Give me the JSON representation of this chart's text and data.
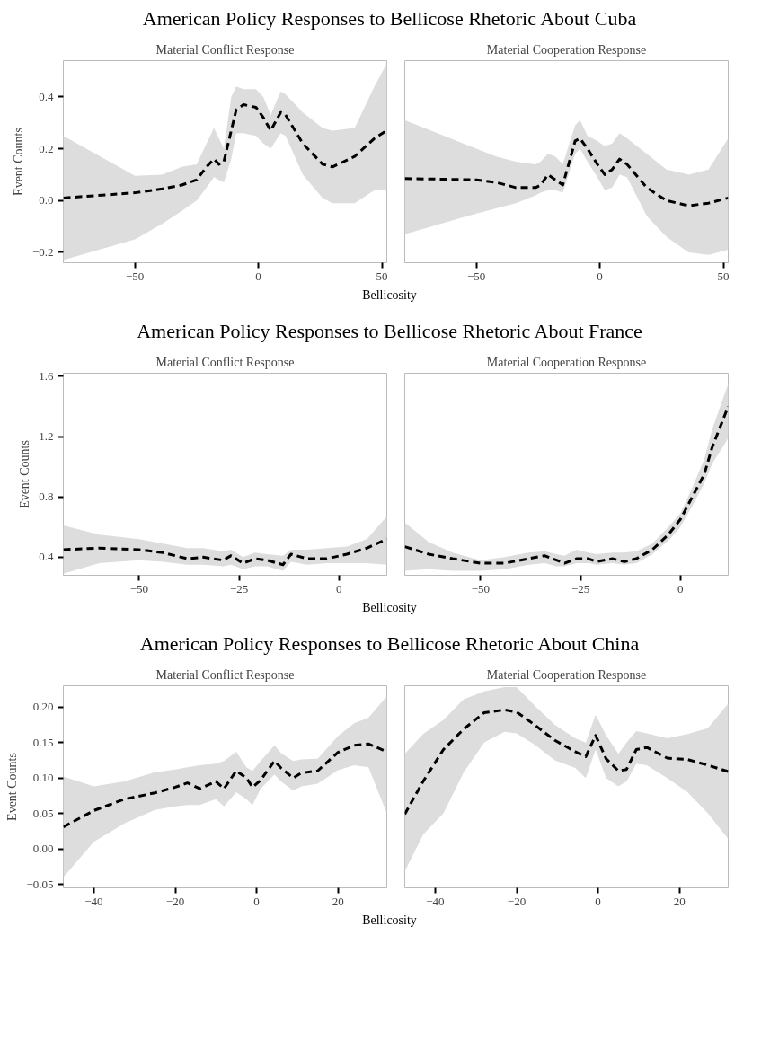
{
  "chart_data": [
    {
      "type": "line",
      "title": "American Policy Responses to Bellicose Rhetoric About Cuba",
      "subtitle": "Material Conflict Response",
      "xlabel": "Bellicosity",
      "ylabel": "Event Counts",
      "line_style": "dashed",
      "grid": false,
      "xlim": [
        -79,
        52
      ],
      "ylim": [
        -0.24,
        0.54
      ],
      "xticks": [
        {
          "value": -50,
          "label": "−50"
        },
        0,
        50
      ],
      "yticks": [
        {
          "value": -0.2,
          "label": "−0.2"
        },
        {
          "value": 0,
          "label": "0.0"
        },
        0.2,
        0.4
      ],
      "x": [
        -79,
        -50,
        -39,
        -31,
        -25,
        -21,
        -18,
        -16,
        -14,
        -11,
        -9,
        -6,
        -1,
        2,
        5,
        9,
        11,
        18,
        26,
        30,
        39,
        47,
        52
      ],
      "series": [
        {
          "color": "#000000",
          "values": [
            0.01,
            0.03,
            0.045,
            0.06,
            0.08,
            0.13,
            0.16,
            0.14,
            0.15,
            0.27,
            0.35,
            0.37,
            0.36,
            0.32,
            0.27,
            0.34,
            0.33,
            0.22,
            0.14,
            0.13,
            0.17,
            0.24,
            0.27
          ],
          "upper": [
            0.25,
            0.095,
            0.1,
            0.13,
            0.14,
            0.22,
            0.28,
            0.24,
            0.2,
            0.4,
            0.44,
            0.43,
            0.43,
            0.4,
            0.33,
            0.42,
            0.41,
            0.34,
            0.28,
            0.27,
            0.28,
            0.44,
            0.53
          ],
          "lower": [
            -0.23,
            -0.15,
            -0.09,
            -0.04,
            0.0,
            0.05,
            0.09,
            0.08,
            0.07,
            0.16,
            0.26,
            0.26,
            0.25,
            0.22,
            0.2,
            0.26,
            0.25,
            0.1,
            0.01,
            -0.01,
            -0.01,
            0.04,
            0.04
          ]
        }
      ]
    },
    {
      "type": "line",
      "subtitle": "Material Cooperation Response",
      "line_style": "dashed",
      "grid": false,
      "tick_labels": "x",
      "xlim": [
        -79,
        52
      ],
      "ylim": [
        -0.24,
        0.54
      ],
      "xticks": [
        {
          "value": -50,
          "label": "−50"
        },
        0,
        50
      ],
      "x": [
        -79,
        -50,
        -42,
        -34,
        -26,
        -24,
        -21,
        -18,
        -15,
        -10,
        -8,
        -5,
        -1,
        2,
        5,
        8,
        11,
        19,
        27,
        36,
        44,
        52
      ],
      "series": [
        {
          "color": "#000000",
          "values": [
            0.085,
            0.08,
            0.07,
            0.05,
            0.05,
            0.06,
            0.1,
            0.08,
            0.06,
            0.23,
            0.24,
            0.2,
            0.14,
            0.1,
            0.12,
            0.16,
            0.14,
            0.05,
            0.0,
            -0.02,
            -0.01,
            0.01
          ],
          "upper": [
            0.31,
            0.2,
            0.17,
            0.15,
            0.14,
            0.15,
            0.18,
            0.17,
            0.14,
            0.29,
            0.31,
            0.25,
            0.23,
            0.21,
            0.22,
            0.26,
            0.24,
            0.18,
            0.12,
            0.1,
            0.12,
            0.24
          ],
          "lower": [
            -0.13,
            -0.05,
            -0.03,
            -0.01,
            0.02,
            0.03,
            0.04,
            0.04,
            0.03,
            0.18,
            0.2,
            0.15,
            0.09,
            0.04,
            0.05,
            0.1,
            0.09,
            -0.06,
            -0.14,
            -0.2,
            -0.21,
            -0.19
          ]
        }
      ]
    },
    {
      "type": "line",
      "title": "American Policy Responses to Bellicose Rhetoric About France",
      "subtitle": "Material Conflict Response",
      "xlabel": "Bellicosity",
      "ylabel": "Event Counts",
      "line_style": "dashed",
      "grid": false,
      "xlim": [
        -69,
        12
      ],
      "ylim": [
        0.28,
        1.62
      ],
      "xticks": [
        {
          "value": -50,
          "label": "−50"
        },
        {
          "value": -25,
          "label": "−25"
        },
        0
      ],
      "yticks": [
        0.4,
        0.8,
        1.2,
        1.6
      ],
      "x": [
        -69,
        -60,
        -50,
        -44,
        -38,
        -34,
        -29,
        -27,
        -24,
        -21,
        -18,
        -14,
        -12,
        -8,
        -3,
        2,
        7,
        12
      ],
      "series": [
        {
          "color": "#000000",
          "values": [
            0.45,
            0.46,
            0.45,
            0.43,
            0.39,
            0.4,
            0.38,
            0.41,
            0.36,
            0.39,
            0.38,
            0.35,
            0.42,
            0.39,
            0.39,
            0.42,
            0.46,
            0.52
          ],
          "upper": [
            0.61,
            0.55,
            0.52,
            0.49,
            0.46,
            0.46,
            0.44,
            0.45,
            0.4,
            0.43,
            0.42,
            0.41,
            0.45,
            0.45,
            0.46,
            0.47,
            0.52,
            0.67
          ],
          "lower": [
            0.29,
            0.36,
            0.38,
            0.37,
            0.35,
            0.35,
            0.34,
            0.35,
            0.32,
            0.34,
            0.34,
            0.31,
            0.37,
            0.35,
            0.36,
            0.36,
            0.36,
            0.35
          ]
        }
      ]
    },
    {
      "type": "line",
      "subtitle": "Material Cooperation Response",
      "line_style": "dashed",
      "grid": false,
      "tick_labels": "x",
      "xlim": [
        -69,
        12
      ],
      "ylim": [
        0.28,
        1.62
      ],
      "xticks": [
        {
          "value": -50,
          "label": "−50"
        },
        {
          "value": -25,
          "label": "−25"
        },
        0
      ],
      "x": [
        -69,
        -63,
        -57,
        -50,
        -44,
        -38,
        -34,
        -31,
        -29,
        -26,
        -23,
        -21,
        -17,
        -14,
        -11,
        -7,
        -3,
        0,
        3,
        6,
        8,
        12
      ],
      "series": [
        {
          "color": "#000000",
          "values": [
            0.47,
            0.42,
            0.39,
            0.36,
            0.36,
            0.39,
            0.41,
            0.38,
            0.36,
            0.39,
            0.39,
            0.37,
            0.39,
            0.37,
            0.39,
            0.45,
            0.55,
            0.65,
            0.8,
            0.95,
            1.13,
            1.4
          ],
          "upper": [
            0.63,
            0.5,
            0.43,
            0.38,
            0.4,
            0.43,
            0.44,
            0.42,
            0.41,
            0.45,
            0.43,
            0.42,
            0.43,
            0.43,
            0.44,
            0.49,
            0.6,
            0.69,
            0.86,
            1.05,
            1.25,
            1.55
          ],
          "lower": [
            0.31,
            0.32,
            0.31,
            0.31,
            0.32,
            0.35,
            0.36,
            0.34,
            0.34,
            0.36,
            0.36,
            0.35,
            0.36,
            0.35,
            0.36,
            0.42,
            0.51,
            0.6,
            0.74,
            0.89,
            1.02,
            1.19
          ]
        }
      ]
    },
    {
      "type": "line",
      "title": "American Policy Responses to Bellicose Rhetoric About China",
      "subtitle": "Material Conflict Response",
      "xlabel": "Bellicosity",
      "ylabel": "Event Counts",
      "line_style": "dashed",
      "grid": false,
      "xlim": [
        -47.5,
        32
      ],
      "ylim": [
        -0.055,
        0.23
      ],
      "xticks": [
        {
          "value": -40,
          "label": "−40"
        },
        {
          "value": -20,
          "label": "−20"
        },
        0,
        20
      ],
      "yticks": [
        {
          "value": -0.05,
          "label": "−0.05"
        },
        {
          "value": 0,
          "label": "0.00"
        },
        0.05,
        {
          "value": 0.1,
          "label": "0.10"
        },
        0.15,
        {
          "value": 0.2,
          "label": "0.20"
        }
      ],
      "x": [
        -47.5,
        -40,
        -32.5,
        -25,
        -20,
        -17,
        -14,
        -10,
        -8,
        -5,
        -2.5,
        -1,
        1,
        4.4,
        6,
        9,
        11,
        15,
        20,
        24,
        27.5,
        32
      ],
      "series": [
        {
          "color": "#000000",
          "values": [
            0.031,
            0.054,
            0.07,
            0.079,
            0.087,
            0.093,
            0.085,
            0.095,
            0.085,
            0.11,
            0.1,
            0.087,
            0.097,
            0.124,
            0.114,
            0.1,
            0.107,
            0.11,
            0.136,
            0.146,
            0.148,
            0.137
          ],
          "upper": [
            0.102,
            0.088,
            0.095,
            0.108,
            0.112,
            0.115,
            0.118,
            0.12,
            0.124,
            0.137,
            0.115,
            0.11,
            0.124,
            0.146,
            0.135,
            0.124,
            0.126,
            0.127,
            0.159,
            0.177,
            0.185,
            0.215
          ],
          "lower": [
            -0.04,
            0.01,
            0.036,
            0.055,
            0.06,
            0.062,
            0.062,
            0.07,
            0.06,
            0.08,
            0.07,
            0.062,
            0.085,
            0.105,
            0.095,
            0.082,
            0.088,
            0.092,
            0.111,
            0.118,
            0.115,
            0.05
          ]
        }
      ]
    },
    {
      "type": "line",
      "subtitle": "Material Cooperation Response",
      "line_style": "dashed",
      "grid": false,
      "tick_labels": "x",
      "xlim": [
        -47.5,
        32
      ],
      "ylim": [
        -0.055,
        0.23
      ],
      "xticks": [
        {
          "value": -40,
          "label": "−40"
        },
        {
          "value": -20,
          "label": "−20"
        },
        0,
        20
      ],
      "x": [
        -47.5,
        -43,
        -38,
        -33,
        -28,
        -23,
        -20,
        -15.6,
        -10.6,
        -5.6,
        -3,
        -0.6,
        2,
        5,
        7,
        9.4,
        12,
        17,
        22,
        27,
        32
      ],
      "series": [
        {
          "color": "#000000",
          "values": [
            0.049,
            0.095,
            0.14,
            0.169,
            0.192,
            0.196,
            0.193,
            0.175,
            0.153,
            0.137,
            0.13,
            0.16,
            0.127,
            0.11,
            0.112,
            0.14,
            0.143,
            0.128,
            0.126,
            0.118,
            0.109
          ],
          "upper": [
            0.134,
            0.162,
            0.182,
            0.211,
            0.222,
            0.228,
            0.228,
            0.202,
            0.175,
            0.156,
            0.15,
            0.189,
            0.16,
            0.134,
            0.15,
            0.166,
            0.163,
            0.156,
            0.162,
            0.17,
            0.205
          ],
          "lower": [
            -0.032,
            0.02,
            0.05,
            0.108,
            0.15,
            0.165,
            0.163,
            0.147,
            0.125,
            0.114,
            0.1,
            0.14,
            0.1,
            0.088,
            0.095,
            0.12,
            0.118,
            0.1,
            0.08,
            0.05,
            0.014
          ]
        }
      ]
    }
  ]
}
